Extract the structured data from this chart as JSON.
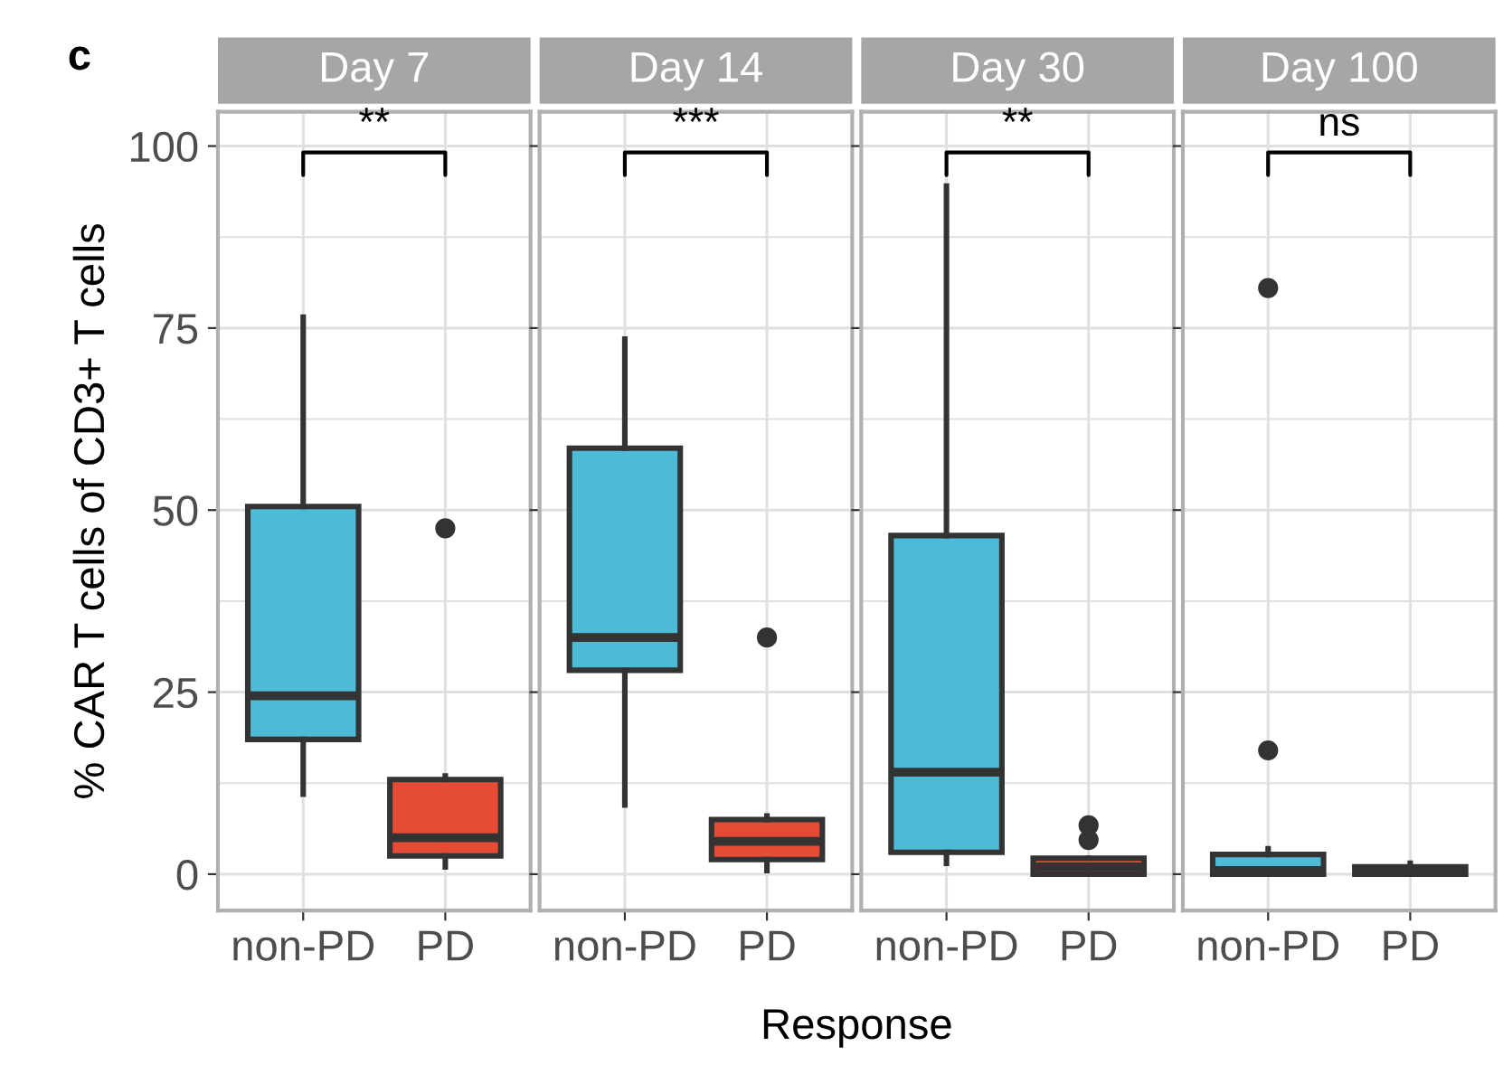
{
  "chart_data": [
    {
      "type": "box",
      "title": "Day 7",
      "ylabel": "% CAR T cells of CD3+ T cells",
      "xlabel": "Response",
      "categories": [
        "non-PD",
        "PD"
      ],
      "colors": [
        "#4dbbd5",
        "#e64b35"
      ],
      "boxes": [
        {
          "low": 11,
          "q1": 18.5,
          "median": 24.5,
          "q3": 50.5,
          "high": 76.5
        },
        {
          "low": 1,
          "q1": 2.5,
          "median": 5,
          "q3": 13,
          "high": 13.5,
          "outliers": [
            47.5
          ]
        }
      ],
      "annotations": [
        "c",
        "**"
      ],
      "ylim": [
        -5,
        104.7
      ],
      "yticks": [
        0,
        25,
        50,
        75,
        100
      ],
      "grid": true
    },
    {
      "type": "box",
      "title": "Day 14",
      "categories": [
        "non-PD",
        "PD"
      ],
      "colors": [
        "#4dbbd5",
        "#e64b35"
      ],
      "boxes": [
        {
          "low": 9.5,
          "q1": 28,
          "median": 32.5,
          "q3": 58.5,
          "high": 73.5
        },
        {
          "low": 0.5,
          "q1": 2,
          "median": 4.5,
          "q3": 7.5,
          "high": 8,
          "outliers": [
            32.5
          ]
        }
      ],
      "annotations": [
        "***"
      ],
      "ylim": [
        -5,
        104.7
      ],
      "yticks": [
        0,
        25,
        50,
        75,
        100
      ],
      "grid": true,
      "tick_labels": "x"
    },
    {
      "type": "box",
      "title": "Day 30",
      "categories": [
        "non-PD",
        "PD"
      ],
      "colors": [
        "#4dbbd5",
        "#e64b35"
      ],
      "boxes": [
        {
          "low": 1.5,
          "q1": 3,
          "median": 14,
          "q3": 46.5,
          "high": 94.5
        },
        {
          "low": 0,
          "q1": 0,
          "median": 1,
          "q3": 2.2,
          "high": 2.2,
          "outliers": [
            4.7,
            6.7
          ]
        }
      ],
      "annotations": [
        "**"
      ],
      "ylim": [
        -5,
        104.7
      ],
      "yticks": [
        0,
        25,
        50,
        75,
        100
      ],
      "grid": true,
      "tick_labels": "x"
    },
    {
      "type": "box",
      "title": "Day 100",
      "categories": [
        "non-PD",
        "PD"
      ],
      "colors": [
        "#4dbbd5",
        "#e64b35"
      ],
      "boxes": [
        {
          "low": 0,
          "q1": 0,
          "median": 0.5,
          "q3": 2.7,
          "high": 3.5,
          "outliers": [
            17,
            80.5
          ]
        },
        {
          "low": 0,
          "q1": 0,
          "median": 0.3,
          "q3": 1,
          "high": 1.5
        }
      ],
      "annotations": [
        "ns"
      ],
      "ylim": [
        -5,
        104.7
      ],
      "yticks": [
        0,
        25,
        50,
        75,
        100
      ],
      "grid": true,
      "tick_labels": "x"
    }
  ]
}
